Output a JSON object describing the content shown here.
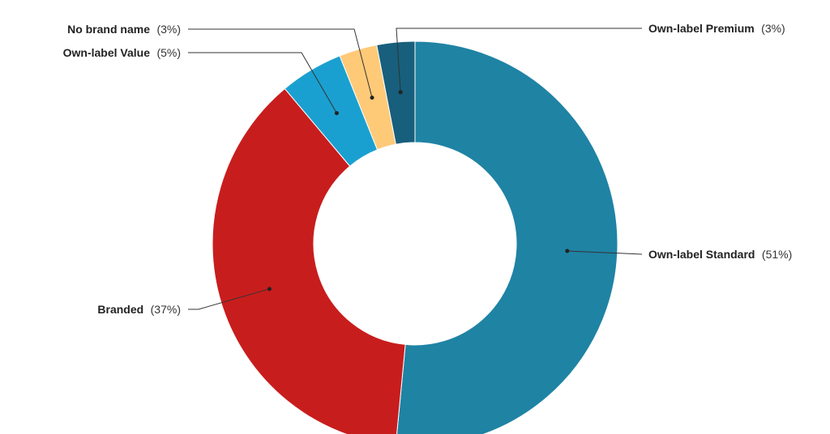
{
  "chart_data": {
    "type": "pie",
    "donut": true,
    "categories": [
      "Own-label Standard",
      "Branded",
      "Own-label Value",
      "No brand name",
      "Own-label Premium"
    ],
    "values": [
      51,
      37,
      5,
      3,
      3
    ],
    "value_labels": [
      "(51%)",
      "(37%)",
      "(5%)",
      "(3%)",
      "(3%)"
    ],
    "colors": [
      "#1f83a4",
      "#c81d1d",
      "#1aa0d0",
      "#ffca78",
      "#175f7c"
    ],
    "title": "",
    "legend": "none",
    "label_placement": "outside-with-leader-lines"
  }
}
